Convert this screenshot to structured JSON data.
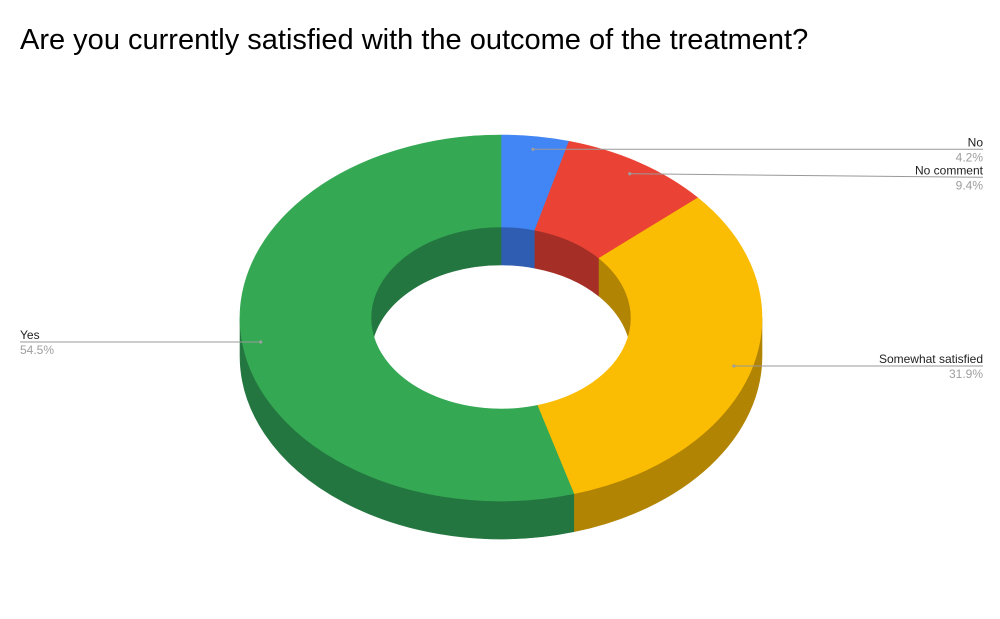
{
  "chart_data": {
    "type": "pie",
    "style": "3d-donut",
    "title": "Are you currently satisfied with the outcome of the treatment?",
    "slices": [
      {
        "label": "No",
        "value": 4.2,
        "value_label": "4.2%",
        "color": "#4285f4",
        "side_color": "#2f5db1",
        "label_side": "right"
      },
      {
        "label": "No comment",
        "value": 9.4,
        "value_label": "9.4%",
        "color": "#ea4335",
        "side_color": "#a52f26",
        "label_side": "right"
      },
      {
        "label": "Somewhat satisfied",
        "value": 31.9,
        "value_label": "31.9%",
        "color": "#fbbc04",
        "side_color": "#b18503",
        "label_side": "right"
      },
      {
        "label": "Yes",
        "value": 54.5,
        "value_label": "54.5%",
        "color": "#34a853",
        "side_color": "#247640",
        "label_side": "left"
      }
    ],
    "legend": "none"
  }
}
